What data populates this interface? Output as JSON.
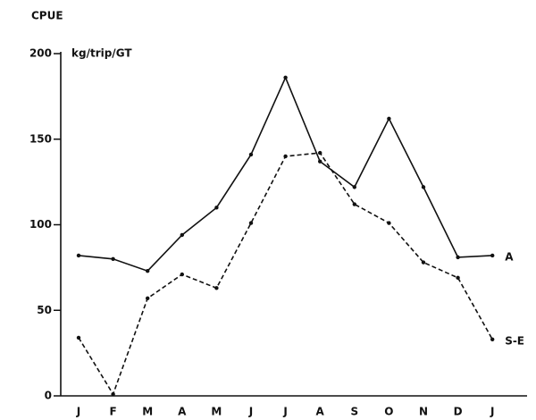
{
  "chart_data": {
    "type": "line",
    "title": "CPUE",
    "y_label": "kg/trip/GT",
    "categories": [
      "J",
      "F",
      "M",
      "A",
      "M",
      "J",
      "J",
      "A",
      "S",
      "O",
      "N",
      "D",
      "J"
    ],
    "series": [
      {
        "name": "A",
        "color": "#111111",
        "dashed": false,
        "values": [
          82,
          80,
          73,
          94,
          110,
          141,
          186,
          137,
          122,
          162,
          122,
          81,
          82
        ]
      },
      {
        "name": "S-E",
        "color": "#111111",
        "dashed": true,
        "values": [
          34,
          1,
          57,
          71,
          63,
          101,
          140,
          142,
          112,
          101,
          78,
          69,
          33
        ]
      }
    ],
    "ylim": [
      0,
      200
    ],
    "yticks": [
      0,
      50,
      100,
      150,
      200
    ],
    "grid": false
  }
}
